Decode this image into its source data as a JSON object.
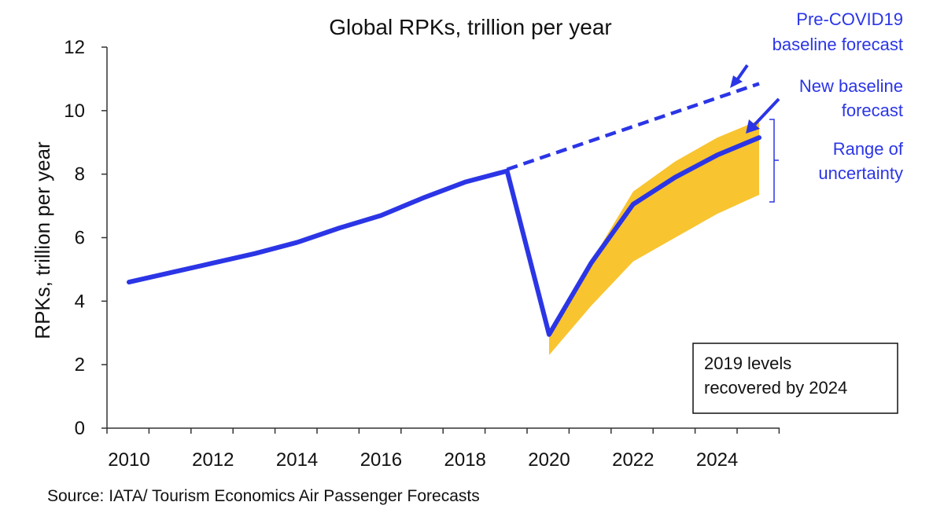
{
  "chart_data": {
    "type": "line",
    "title": "Global RPKs, trillion per year",
    "xlabel": "",
    "ylabel": "RPKs, trillion per year",
    "xlim": [
      2010,
      2025
    ],
    "ylim": [
      0,
      12
    ],
    "x_ticks": [
      2010,
      2012,
      2014,
      2016,
      2018,
      2020,
      2022,
      2024
    ],
    "y_ticks": [
      0,
      2,
      4,
      6,
      8,
      10,
      12
    ],
    "grid": false,
    "series": [
      {
        "name": "New baseline forecast",
        "style": "solid",
        "color": "#2B35E6",
        "x": [
          2010,
          2011,
          2012,
          2013,
          2014,
          2015,
          2016,
          2017,
          2018,
          2019,
          2020,
          2021,
          2022,
          2023,
          2024,
          2025
        ],
        "y": [
          4.6,
          4.9,
          5.2,
          5.5,
          5.85,
          6.3,
          6.7,
          7.25,
          7.75,
          8.1,
          2.95,
          5.2,
          7.05,
          7.9,
          8.6,
          9.15
        ]
      },
      {
        "name": "Pre-COVID19 baseline forecast",
        "style": "dashed",
        "color": "#2B35E6",
        "x": [
          2019,
          2020,
          2021,
          2022,
          2023,
          2024,
          2025
        ],
        "y": [
          8.15,
          8.6,
          9.05,
          9.5,
          9.95,
          10.4,
          10.85
        ]
      }
    ],
    "range": {
      "name": "Range of uncertainty",
      "color": "#F8C430",
      "x": [
        2020,
        2021,
        2022,
        2023,
        2024,
        2025
      ],
      "upper": [
        3.0,
        5.25,
        7.45,
        8.4,
        9.15,
        9.7
      ],
      "lower": [
        2.3,
        3.85,
        5.25,
        6.0,
        6.75,
        7.35
      ]
    },
    "annotations": {
      "pre_covid": [
        "Pre-COVID19",
        "baseline forecast"
      ],
      "new_baseline": [
        "New baseline",
        "forecast"
      ],
      "range": [
        "Range of",
        "uncertainty"
      ],
      "box": [
        "2019 levels",
        "recovered by 2024"
      ]
    },
    "annotation_color": "#2B35E6"
  },
  "source": "Source: IATA/ Tourism Economics Air Passenger Forecasts"
}
